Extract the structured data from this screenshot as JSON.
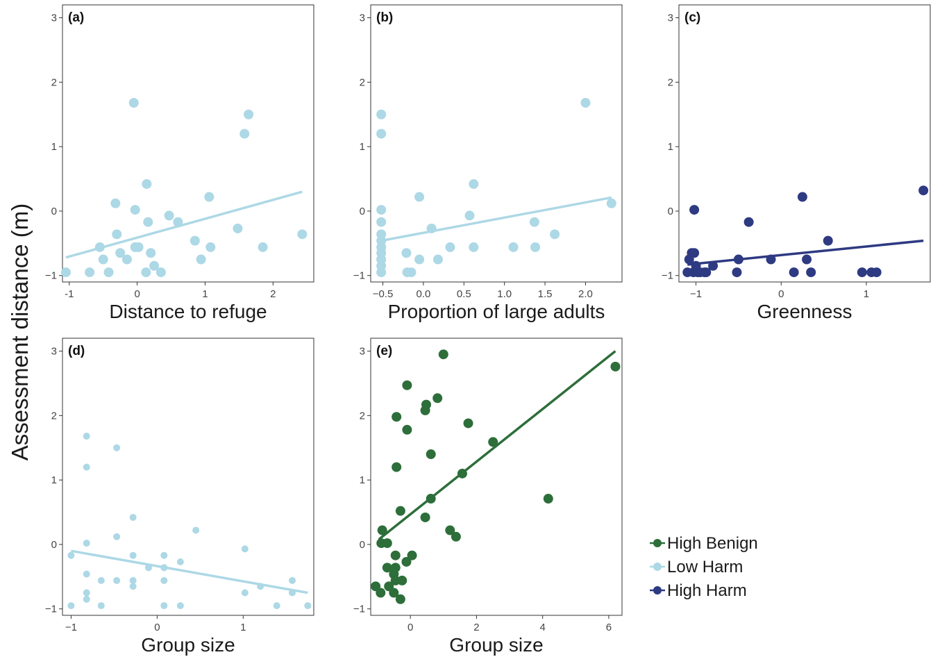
{
  "ylabel": "Assessment distance (m)",
  "colors": {
    "low_harm": "#add8e6",
    "high_harm": "#2e3a82",
    "high_benign": "#2d6e3a",
    "axis": "#333333"
  },
  "legend": [
    {
      "label": "High Benign",
      "color": "#2d6e3a"
    },
    {
      "label": "Low Harm",
      "color": "#add8e6"
    },
    {
      "label": "High Harm",
      "color": "#2e3a82"
    }
  ],
  "chart_data": [
    {
      "type": "scatter",
      "panel_label": "(a)",
      "xlabel": "Distance to refuge",
      "xlim": [
        -1.1,
        2.6
      ],
      "ylim": [
        -1.1,
        3.2
      ],
      "xticks": [
        {
          "v": -1,
          "t": "-1"
        },
        {
          "v": 0,
          "t": "0"
        },
        {
          "v": 1,
          "t": "1"
        },
        {
          "v": 2,
          "t": "2"
        }
      ],
      "yticks": [
        {
          "v": -1,
          "t": "−1"
        },
        {
          "v": 0,
          "t": "0"
        },
        {
          "v": 1,
          "t": "1"
        },
        {
          "v": 2,
          "t": "2"
        },
        {
          "v": 3,
          "t": "3"
        }
      ],
      "series": [
        {
          "color": "#add8e6",
          "r": 7,
          "x": [
            -1.05,
            -0.7,
            -0.55,
            -0.5,
            -0.42,
            -0.32,
            -0.3,
            -0.25,
            -0.15,
            -0.05,
            -0.03,
            -0.03,
            0.02,
            0.13,
            0.14,
            0.16,
            0.2,
            0.25,
            0.35,
            0.47,
            0.6,
            0.85,
            0.94,
            1.06,
            1.08,
            1.48,
            1.58,
            1.64,
            1.85,
            2.43
          ],
          "y": [
            -0.95,
            -0.95,
            -0.56,
            -0.75,
            -0.95,
            0.12,
            -0.36,
            -0.65,
            -0.75,
            1.68,
            0.02,
            -0.56,
            -0.56,
            -0.95,
            0.42,
            -0.17,
            -0.65,
            -0.85,
            -0.95,
            -0.07,
            -0.17,
            -0.46,
            -0.75,
            0.22,
            -0.56,
            -0.27,
            1.2,
            1.5,
            -0.56,
            -0.36
          ],
          "line": {
            "x": [
              -1.05,
              2.43
            ],
            "y": [
              -0.72,
              0.3
            ]
          }
        }
      ]
    },
    {
      "type": "scatter",
      "panel_label": "(b)",
      "xlabel": "Proportion of large adults",
      "xlim": [
        -0.65,
        2.45
      ],
      "ylim": [
        -1.1,
        3.2
      ],
      "xticks": [
        {
          "v": -0.5,
          "t": "−0.5"
        },
        {
          "v": 0,
          "t": "0.0"
        },
        {
          "v": 0.5,
          "t": "0.5"
        },
        {
          "v": 1,
          "t": "1.0"
        },
        {
          "v": 1.5,
          "t": "1.5"
        },
        {
          "v": 2,
          "t": "2.0"
        }
      ],
      "yticks": [
        {
          "v": -1,
          "t": "−1"
        },
        {
          "v": 0,
          "t": "0"
        },
        {
          "v": 1,
          "t": "1"
        },
        {
          "v": 2,
          "t": "2"
        },
        {
          "v": 3,
          "t": "3"
        }
      ],
      "series": [
        {
          "color": "#add8e6",
          "r": 7,
          "x": [
            -0.52,
            -0.52,
            -0.52,
            -0.52,
            -0.52,
            -0.52,
            -0.52,
            -0.52,
            -0.52,
            -0.52,
            -0.52,
            -0.52,
            -0.21,
            -0.2,
            -0.15,
            -0.05,
            -0.05,
            0.1,
            0.18,
            0.33,
            0.57,
            0.62,
            0.62,
            1.11,
            1.37,
            1.38,
            1.62,
            2.0,
            2.32
          ],
          "y": [
            1.5,
            1.2,
            0.02,
            -0.17,
            -0.36,
            -0.46,
            -0.65,
            -0.75,
            -0.85,
            -0.95,
            -0.75,
            -0.56,
            -0.65,
            -0.95,
            -0.95,
            0.22,
            -0.75,
            -0.27,
            -0.75,
            -0.56,
            -0.07,
            0.42,
            -0.56,
            -0.56,
            -0.17,
            -0.56,
            -0.36,
            1.68,
            0.12
          ],
          "line": {
            "x": [
              -0.52,
              2.32
            ],
            "y": [
              -0.46,
              0.21
            ]
          }
        }
      ]
    },
    {
      "type": "scatter",
      "panel_label": "(c)",
      "xlabel": "Greenness",
      "xlim": [
        -1.2,
        1.75
      ],
      "ylim": [
        -1.1,
        3.2
      ],
      "xticks": [
        {
          "v": -1,
          "t": "−1"
        },
        {
          "v": 0,
          "t": "0"
        },
        {
          "v": 1,
          "t": "1"
        }
      ],
      "yticks": [
        {
          "v": -1,
          "t": "−1"
        },
        {
          "v": 0,
          "t": "0"
        },
        {
          "v": 1,
          "t": "1"
        },
        {
          "v": 2,
          "t": "2"
        },
        {
          "v": 3,
          "t": "3"
        }
      ],
      "series": [
        {
          "color": "#2e3a82",
          "r": 7,
          "x": [
            -1.1,
            -1.08,
            -1.05,
            -1.03,
            -1.02,
            -1.02,
            -1.0,
            -0.98,
            -0.95,
            -0.9,
            -0.88,
            -0.8,
            -0.52,
            -0.5,
            -0.38,
            -0.12,
            0.15,
            0.25,
            0.3,
            0.35,
            0.55,
            0.95,
            1.06,
            1.12,
            1.67
          ],
          "y": [
            -0.95,
            -0.75,
            -0.65,
            -0.95,
            0.02,
            -0.65,
            -0.85,
            -0.95,
            -0.95,
            -0.95,
            -0.95,
            -0.85,
            -0.95,
            -0.75,
            -0.17,
            -0.75,
            -0.95,
            0.22,
            -0.75,
            -0.95,
            -0.46,
            -0.95,
            -0.95,
            -0.95,
            0.32
          ],
          "line": {
            "x": [
              -1.1,
              1.67
            ],
            "y": [
              -0.83,
              -0.46
            ]
          }
        }
      ]
    },
    {
      "type": "scatter",
      "panel_label": "(d)",
      "xlabel": "Group size",
      "xlim": [
        -1.1,
        1.82
      ],
      "ylim": [
        -1.1,
        3.2
      ],
      "xticks": [
        {
          "v": -1,
          "t": "−1"
        },
        {
          "v": 0,
          "t": "0"
        },
        {
          "v": 1,
          "t": "1"
        }
      ],
      "yticks": [
        {
          "v": -1,
          "t": "−1"
        },
        {
          "v": 0,
          "t": "0"
        },
        {
          "v": 1,
          "t": "1"
        },
        {
          "v": 2,
          "t": "2"
        },
        {
          "v": 3,
          "t": "3"
        }
      ],
      "series": [
        {
          "color": "#add8e6",
          "r": 5,
          "x": [
            -1.0,
            -1.0,
            -0.82,
            -0.82,
            -0.82,
            -0.82,
            -0.82,
            -0.82,
            -0.65,
            -0.65,
            -0.47,
            -0.47,
            -0.47,
            -0.28,
            -0.28,
            -0.28,
            -0.28,
            -0.1,
            0.08,
            0.08,
            0.08,
            0.08,
            0.27,
            0.27,
            0.45,
            1.02,
            1.02,
            1.2,
            1.39,
            1.57,
            1.57,
            1.75
          ],
          "y": [
            -0.17,
            -0.95,
            1.68,
            1.2,
            0.02,
            -0.46,
            -0.75,
            -0.85,
            -0.56,
            -0.95,
            1.5,
            0.12,
            -0.56,
            0.42,
            -0.17,
            -0.56,
            -0.65,
            -0.36,
            -0.17,
            -0.36,
            -0.56,
            -0.95,
            -0.27,
            -0.95,
            0.22,
            -0.07,
            -0.75,
            -0.65,
            -0.95,
            -0.56,
            -0.75,
            -0.95
          ],
          "line": {
            "x": [
              -1.0,
              1.75
            ],
            "y": [
              -0.1,
              -0.75
            ]
          }
        }
      ]
    },
    {
      "type": "scatter",
      "panel_label": "(e)",
      "xlabel": "Group size",
      "xlim": [
        -1.2,
        6.4
      ],
      "ylim": [
        -1.1,
        3.2
      ],
      "xticks": [
        {
          "v": 0,
          "t": "0"
        },
        {
          "v": 2,
          "t": "2"
        },
        {
          "v": 4,
          "t": "4"
        },
        {
          "v": 6,
          "t": "6"
        }
      ],
      "yticks": [
        {
          "v": -1,
          "t": "−1"
        },
        {
          "v": 0,
          "t": "0"
        },
        {
          "v": 1,
          "t": "1"
        },
        {
          "v": 2,
          "t": "2"
        },
        {
          "v": 3,
          "t": "3"
        }
      ],
      "series": [
        {
          "color": "#2d6e3a",
          "r": 7,
          "x": [
            -1.05,
            -0.9,
            -0.85,
            -0.88,
            -0.7,
            -0.7,
            -0.65,
            -0.5,
            -0.5,
            -0.45,
            -0.45,
            -0.45,
            -0.42,
            -0.42,
            -0.3,
            -0.3,
            -0.25,
            -0.12,
            -0.1,
            -0.1,
            0.05,
            0.45,
            0.45,
            0.48,
            0.62,
            0.62,
            0.82,
            1.0,
            1.2,
            1.38,
            1.57,
            1.75,
            2.5,
            4.17,
            6.2
          ],
          "y": [
            -0.65,
            -0.75,
            0.22,
            0.02,
            0.02,
            -0.36,
            -0.65,
            -0.46,
            -0.75,
            -0.36,
            -0.56,
            -0.17,
            1.98,
            1.2,
            -0.85,
            0.52,
            -0.56,
            -0.27,
            2.47,
            1.78,
            -0.17,
            0.42,
            2.08,
            2.17,
            1.4,
            0.71,
            2.27,
            2.95,
            0.22,
            0.12,
            1.1,
            1.88,
            1.59,
            0.71,
            2.76
          ],
          "line": {
            "x": [
              -0.95,
              6.2
            ],
            "y": [
              0.08,
              3.0
            ]
          }
        }
      ]
    }
  ]
}
